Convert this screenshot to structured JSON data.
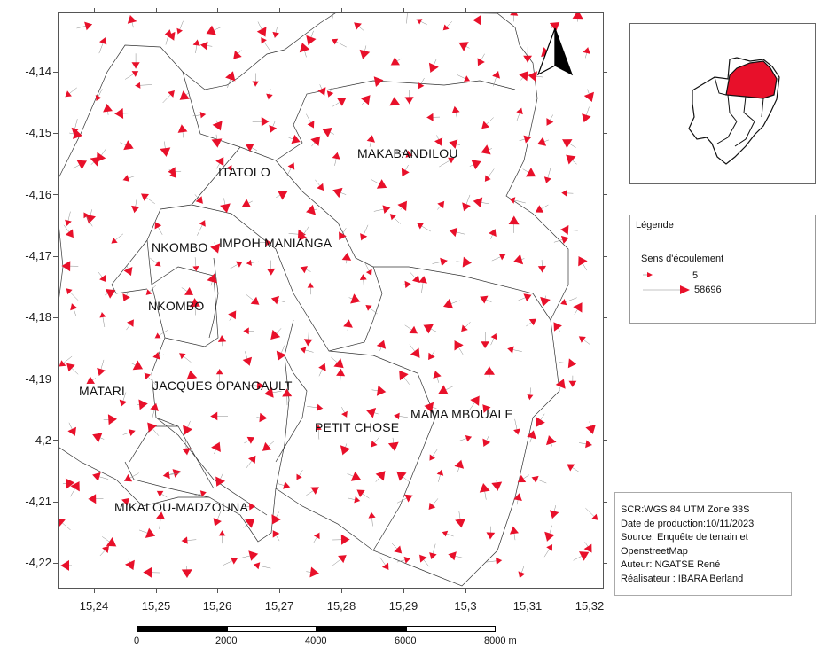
{
  "map": {
    "neighborhoods": [
      {
        "name": "ITATOLO",
        "id": "itatolo"
      },
      {
        "name": "MAKABANDILOU",
        "id": "makabandilou"
      },
      {
        "name": "NKOMBO",
        "id": "nkombo-1"
      },
      {
        "name": "IMPOH MANIANGA",
        "id": "impoh-manianga"
      },
      {
        "name": "NKOMBO",
        "id": "nkombo-2"
      },
      {
        "name": "MATARI",
        "id": "matari"
      },
      {
        "name": "JACQUES OPANGAULT",
        "id": "jacques-opangault"
      },
      {
        "name": "PETIT CHOSE",
        "id": "petit-chose"
      },
      {
        "name": "MAMA MBOUALE",
        "id": "mama-mbouale"
      },
      {
        "name": "MIKALOU-MADZOUNA",
        "id": "mikalou-madzouna"
      }
    ],
    "y_ticks": [
      "-4,14",
      "-4,15",
      "-4,16",
      "-4,17",
      "-4,18",
      "-4,19",
      "-4,2",
      "-4,21",
      "-4,22"
    ],
    "x_ticks": [
      "15,24",
      "15,25",
      "15,26",
      "15,27",
      "15,28",
      "15,29",
      "15,3",
      "15,31",
      "15,32"
    ],
    "arrow_color": "#e8102a",
    "north_arrow_icon": "north-arrow-icon"
  },
  "legend": {
    "title": "Légende",
    "subtitle": "Sens d'écoulement",
    "min_value": "5",
    "max_value": "58696"
  },
  "info": {
    "scr": "SCR:WGS 84 UTM Zone 33S",
    "date": "Date de production:10/11/2023",
    "source1": "Source: Enquête de terrain et",
    "source2": "OpenstreetMap",
    "author": "Auteur: NGATSE René",
    "producer": "Réalisateur : IBARA Berland"
  },
  "scalebar": {
    "labels": [
      "0",
      "2000",
      "4000",
      "6000",
      "8000 m"
    ]
  },
  "inset": {
    "highlight_color": "#e8102a"
  }
}
